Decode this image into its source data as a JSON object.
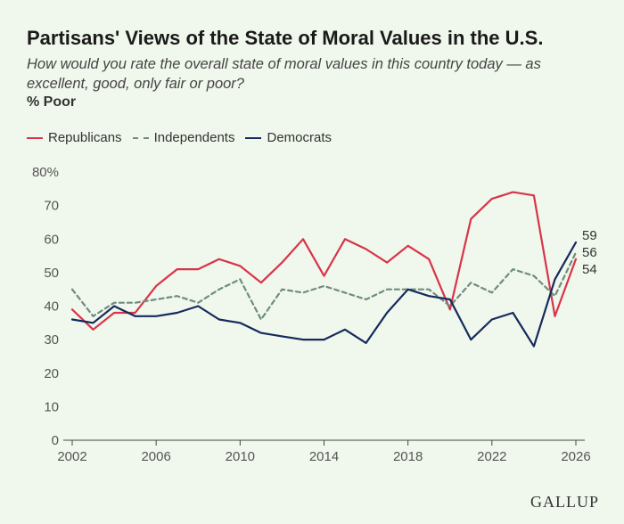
{
  "header": {
    "title": "Partisans' Views of the State of Moral Values in the U.S.",
    "subtitle": "How would you rate the overall state of moral values in this country today — as excellent, good, only fair or poor?",
    "unit_label": "% Poor"
  },
  "brand": "GALLUP",
  "chart_data": {
    "type": "line",
    "title": "Partisans' Views of the State of Moral Values in the U.S.",
    "subtitle": "How would you rate the overall state of moral values in this country today — as excellent, good, only fair or poor?",
    "ylabel": "% Poor",
    "xlim": [
      2002,
      2026
    ],
    "ylim": [
      0,
      80
    ],
    "x_ticks": [
      2002,
      2006,
      2010,
      2014,
      2018,
      2022,
      2026
    ],
    "y_ticks": [
      0,
      10,
      20,
      30,
      40,
      50,
      60,
      70,
      80
    ],
    "y_tick_labels": [
      "0",
      "10",
      "20",
      "30",
      "40",
      "50",
      "60",
      "70",
      "80%"
    ],
    "grid": false,
    "legend_position": "top-left",
    "x": [
      2002,
      2003,
      2004,
      2005,
      2006,
      2007,
      2008,
      2009,
      2010,
      2011,
      2012,
      2013,
      2014,
      2015,
      2016,
      2017,
      2018,
      2019,
      2020,
      2021,
      2022,
      2023,
      2024,
      2025,
      2026
    ],
    "series": [
      {
        "name": "Republicans",
        "color": "#d8344a",
        "dash": "solid",
        "values": [
          39,
          33,
          38,
          38,
          46,
          51,
          51,
          54,
          52,
          47,
          53,
          60,
          49,
          60,
          57,
          53,
          58,
          54,
          39,
          66,
          72,
          74,
          73,
          37,
          54
        ],
        "end_label": "54"
      },
      {
        "name": "Independents",
        "color": "#6e8d7e",
        "dash": "dashed",
        "values": [
          45,
          37,
          41,
          41,
          42,
          43,
          41,
          45,
          48,
          36,
          45,
          44,
          46,
          44,
          42,
          45,
          45,
          45,
          40,
          47,
          44,
          51,
          49,
          43,
          56
        ],
        "end_label": "56"
      },
      {
        "name": "Democrats",
        "color": "#152a5c",
        "dash": "solid",
        "values": [
          36,
          35,
          40,
          37,
          37,
          38,
          40,
          36,
          35,
          32,
          31,
          30,
          30,
          33,
          29,
          38,
          45,
          43,
          42,
          30,
          36,
          38,
          28,
          48,
          59
        ],
        "end_label": "59"
      }
    ]
  }
}
